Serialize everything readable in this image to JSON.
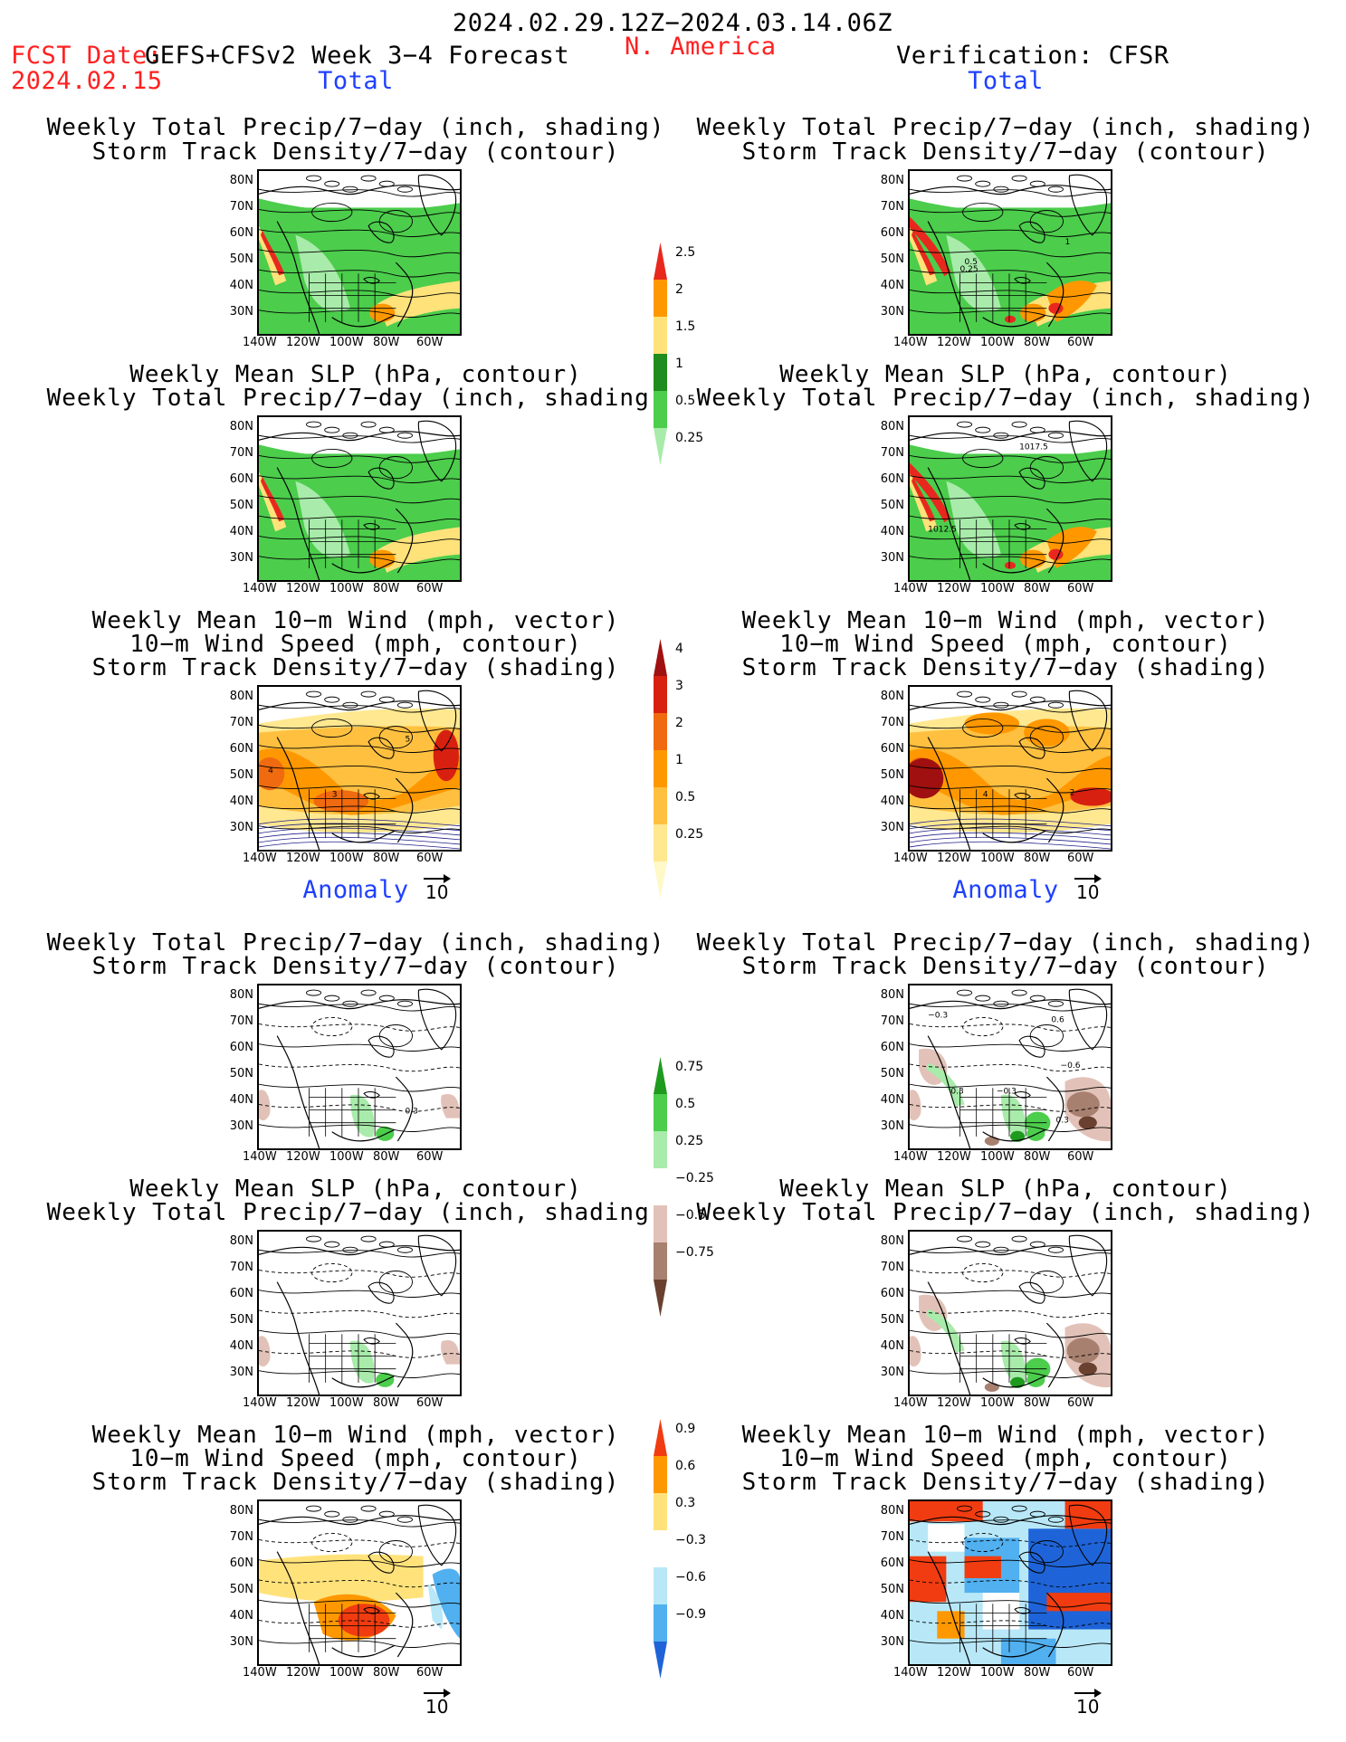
{
  "header": {
    "period": "2024.02.29.12Z−2024.03.14.06Z",
    "fcst_label": "FCST Date:",
    "fcst_date": "2024.02.15",
    "model": "GEFS+CFSv2 Week 3−4 Forecast",
    "region": "N. America",
    "verification": "Verification: CFSR",
    "left_total": "Total",
    "right_total": "Total",
    "left_anomaly": "Anomaly",
    "right_anomaly": "Anomaly"
  },
  "titles": {
    "precip_track": [
      "Weekly Total Precip/7−day (inch, shading)",
      "Storm Track Density/7−day (contour)"
    ],
    "slp_precip": [
      "Weekly Mean SLP (hPa, contour)",
      "Weekly Total Precip/7−day (inch, shading)"
    ],
    "wind_track": [
      "Weekly Mean 10−m Wind (mph, vector)",
      "10−m Wind Speed (mph, contour)",
      "Storm Track Density/7−day (shading)"
    ]
  },
  "axes": {
    "lat_ticks": [
      "80N",
      "70N",
      "60N",
      "50N",
      "40N",
      "30N"
    ],
    "lon_ticks": [
      "140W",
      "120W",
      "100W",
      "80W",
      "60W"
    ],
    "vector_ref": "10"
  },
  "colorbars": {
    "precip_total": {
      "labels": [
        "2.5",
        "2",
        "1.5",
        "1",
        "0.5",
        "0.25"
      ],
      "colors": [
        "#e8281e",
        "#ff9800",
        "#ffe27a",
        "#1e8c1e",
        "#4ccd4c",
        "#a8ebaa"
      ]
    },
    "track_total": {
      "labels": [
        "4",
        "3",
        "2",
        "1",
        "0.5",
        "0.25"
      ],
      "colors": [
        "#a01010",
        "#d82010",
        "#f06a10",
        "#ff9800",
        "#ffc040",
        "#ffe890",
        "#fff8c8"
      ]
    },
    "precip_anom": {
      "labels": [
        "0.75",
        "0.5",
        "0.25",
        "−0.25",
        "−0.5",
        "−0.75"
      ],
      "colors": [
        "#1e9a1e",
        "#4ccd4c",
        "#a8ebaa",
        "#ffffff",
        "#e2c2b8",
        "#a88070",
        "#6a4030"
      ]
    },
    "track_anom": {
      "labels": [
        "0.9",
        "0.6",
        "0.3",
        "−0.3",
        "−0.6",
        "−0.9"
      ],
      "colors": [
        "#f03c10",
        "#ff9800",
        "#ffe27a",
        "#ffffff",
        "#b8e8f8",
        "#50b0f0",
        "#1e64d8"
      ]
    }
  },
  "contour_labels": {
    "r1": [
      "0.25",
      "0.5",
      "1"
    ],
    "r2": [
      "1017.5",
      "1012.5"
    ],
    "l3": [
      "4",
      "3",
      "5"
    ],
    "r3": [
      "4",
      "2"
    ],
    "l4": [
      "0.3"
    ],
    "r4": [
      "−0.3",
      "0.3",
      "−0.3",
      "0.6",
      "−0.6",
      "0.3"
    ]
  }
}
